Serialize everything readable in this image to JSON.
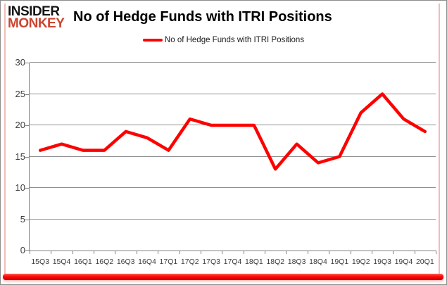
{
  "brand": {
    "line1": "INSIDER",
    "line2": "MONKEY"
  },
  "header": {
    "title": "No of Hedge Funds with ITRI Positions"
  },
  "legend": {
    "label": "No of Hedge Funds with ITRI Positions"
  },
  "colors": {
    "series": "#ff0000",
    "gridline": "#909090",
    "axis": "#7f7f7f",
    "tick_text": "#3c3c3c",
    "brand_black": "#141414",
    "brand_red": "#cb4631",
    "bottom_bar": "#ee0f0f",
    "frame_border": "#8c8c8c",
    "frame_rail": "#f2bcb6"
  },
  "chart_data": {
    "type": "line",
    "title": "No of Hedge Funds with ITRI Positions",
    "categories": [
      "15Q3",
      "15Q4",
      "16Q1",
      "16Q2",
      "16Q3",
      "16Q4",
      "17Q1",
      "17Q2",
      "17Q3",
      "17Q4",
      "18Q1",
      "18Q2",
      "18Q3",
      "18Q4",
      "19Q1",
      "19Q2",
      "19Q3",
      "19Q4",
      "20Q1"
    ],
    "series": [
      {
        "name": "No of Hedge Funds with ITRI Positions",
        "color": "#ff0000",
        "values": [
          16,
          17,
          16,
          16,
          19,
          18,
          16,
          21,
          20,
          20,
          20,
          13,
          17,
          14,
          15,
          22,
          25,
          21,
          19
        ]
      }
    ],
    "ylim": [
      0,
      30
    ],
    "ytick_step": 5,
    "grid": true,
    "legend_position": "top",
    "xlabel": "",
    "ylabel": ""
  }
}
